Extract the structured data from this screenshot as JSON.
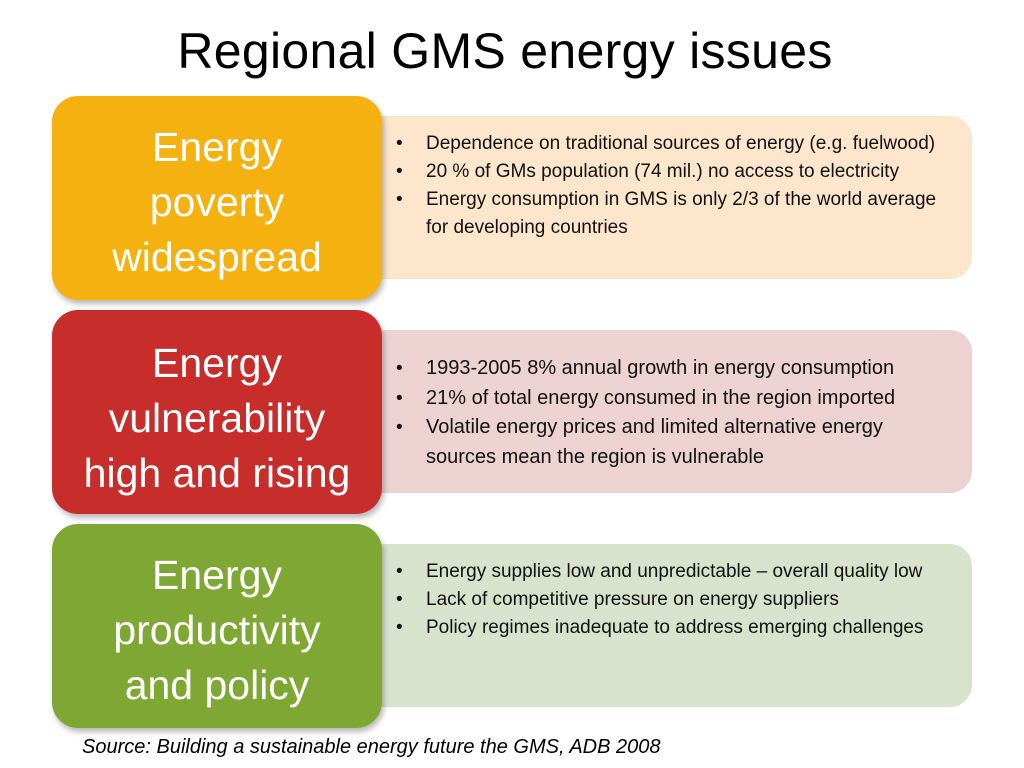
{
  "title": "Regional GMS energy issues",
  "colors": {
    "poverty_box": "#F5B10F",
    "poverty_panel": "#FDE6CC",
    "vulnerability_box": "#C62D2B",
    "vulnerability_panel": "#EDD2D2",
    "productivity_box": "#7EA833",
    "productivity_panel": "#D8E3CE"
  },
  "sections": [
    {
      "label_lines": [
        "Energy",
        "poverty",
        "widespread"
      ],
      "bullets": [
        "Dependence on traditional sources of energy (e.g. fuelwood)",
        "20 % of GMs population (74 mil.) no access to electricity",
        "Energy consumption in GMS is only 2/3 of the world average for developing countries"
      ]
    },
    {
      "label_lines": [
        "Energy",
        "vulnerability",
        "high and rising"
      ],
      "bullets": [
        "1993-2005 8% annual growth in energy consumption",
        "21% of total energy consumed in the region imported",
        "Volatile energy prices and limited alternative energy sources mean the region is vulnerable"
      ]
    },
    {
      "label_lines": [
        "Energy",
        "productivity",
        "and policy"
      ],
      "bullets": [
        "Energy supplies low and unpredictable – overall quality low",
        "Lack of competitive pressure on energy suppliers",
        "Policy regimes inadequate to address emerging challenges"
      ]
    }
  ],
  "bullet_symbol": "•",
  "source": "Source: Building a sustainable energy future the GMS, ADB 2008"
}
